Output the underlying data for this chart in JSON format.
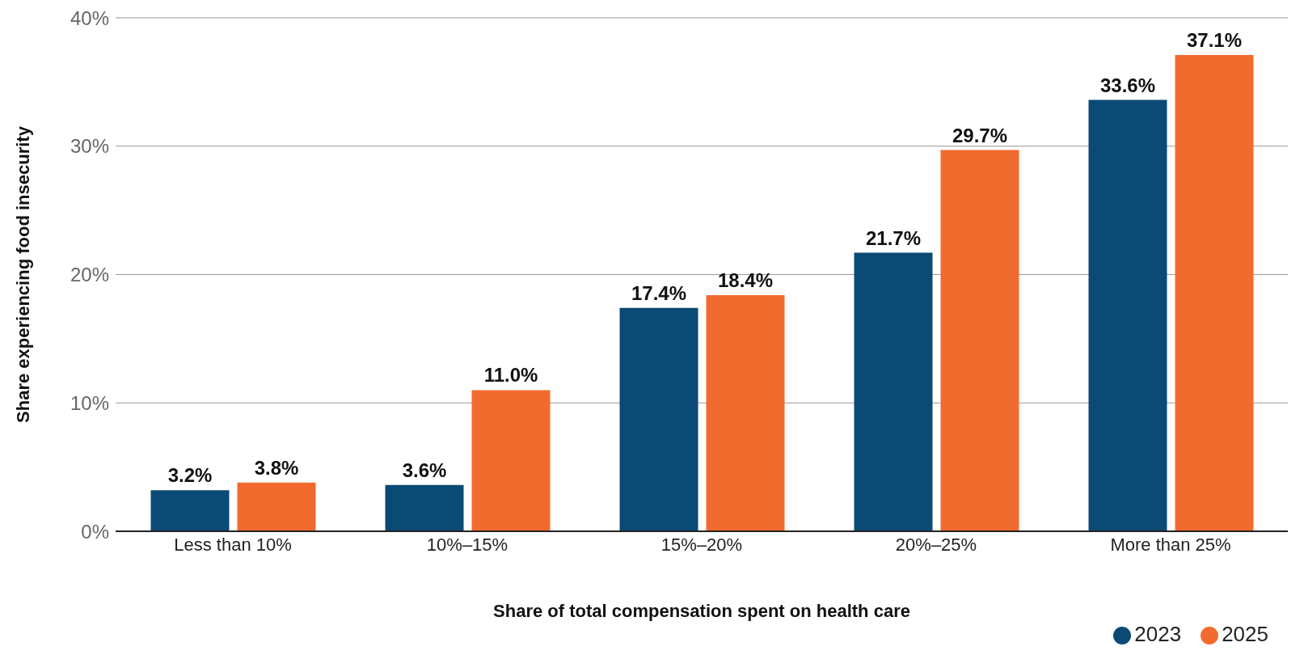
{
  "chart_data": {
    "type": "bar",
    "xlabel": "Share of total compensation spent on health care",
    "ylabel": "Share experiencing food insecurity",
    "categories": [
      "Less than 10%",
      "10%–15%",
      "15%–20%",
      "20%–25%",
      "More than 25%"
    ],
    "series": [
      {
        "name": "2023",
        "color": "#0a4a75",
        "values": [
          3.2,
          3.6,
          17.4,
          21.7,
          33.6
        ],
        "value_labels": [
          "3.2%",
          "3.6%",
          "17.4%",
          "21.7%",
          "33.6%"
        ]
      },
      {
        "name": "2025",
        "color": "#f26b2e",
        "values": [
          3.8,
          11.0,
          18.4,
          29.7,
          37.1
        ],
        "value_labels": [
          "3.8%",
          "11.0%",
          "18.4%",
          "29.7%",
          "37.1%"
        ]
      }
    ],
    "ylim": [
      0,
      40
    ],
    "yticks": [
      {
        "value": 0,
        "label": "0%"
      },
      {
        "value": 10,
        "label": "10%"
      },
      {
        "value": 20,
        "label": "20%"
      },
      {
        "value": 30,
        "label": "30%"
      },
      {
        "value": 40,
        "label": "40%"
      }
    ],
    "grid": "y",
    "legend": "bottom right"
  }
}
